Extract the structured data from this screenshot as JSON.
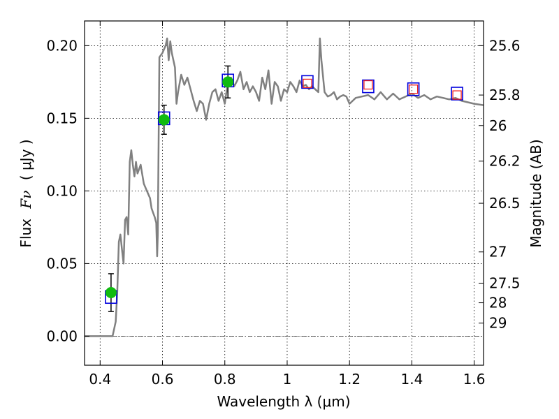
{
  "chart_data": {
    "type": "line",
    "xlabel": "Wavelength  λ (μm)",
    "ylabel_text": "Flux",
    "ylabel_symbol": "Fν",
    "ylabel_unit": "( μJy )",
    "y2label": "Magnitude (AB)",
    "xlim": [
      0.35,
      1.63
    ],
    "ylim": [
      -0.02,
      0.217
    ],
    "xticks": [
      0.4,
      0.6,
      0.8,
      1.0,
      1.2,
      1.4,
      1.6
    ],
    "xtick_labels": [
      "0.4",
      "0.6",
      "0.8",
      "1",
      "1.2",
      "1.4",
      "1.6"
    ],
    "yticks": [
      0.0,
      0.05,
      0.1,
      0.15,
      0.2
    ],
    "ytick_labels": [
      "0.00",
      "0.05",
      "0.10",
      "0.15",
      "0.20"
    ],
    "y2ticks": [
      {
        "flux": 0.2,
        "label": "25.6"
      },
      {
        "flux": 0.166,
        "label": "25.8"
      },
      {
        "flux": 0.145,
        "label": "26"
      },
      {
        "flux": 0.1205,
        "label": "26.2"
      },
      {
        "flux": 0.0915,
        "label": "26.5"
      },
      {
        "flux": 0.058,
        "label": "27"
      },
      {
        "flux": 0.0365,
        "label": "27.5"
      },
      {
        "flux": 0.023,
        "label": "28"
      },
      {
        "flux": 0.009,
        "label": "29"
      }
    ],
    "grid": true,
    "zero_line": true,
    "colors": {
      "sed": "#808080",
      "detections": "#11bb11",
      "model_box": "#0000dd",
      "predicted_box": "#ee2222",
      "errorbar": "#000000"
    },
    "series": [
      {
        "style": "sed-line",
        "x": [
          0.35,
          0.43,
          0.44,
          0.45,
          0.455,
          0.46,
          0.465,
          0.47,
          0.475,
          0.48,
          0.485,
          0.49,
          0.495,
          0.5,
          0.505,
          0.51,
          0.515,
          0.52,
          0.53,
          0.54,
          0.55,
          0.56,
          0.565,
          0.57,
          0.575,
          0.58,
          0.583,
          0.585,
          0.59,
          0.6,
          0.61,
          0.615,
          0.62,
          0.625,
          0.63,
          0.64,
          0.645,
          0.65,
          0.66,
          0.67,
          0.68,
          0.69,
          0.7,
          0.71,
          0.72,
          0.73,
          0.74,
          0.75,
          0.76,
          0.77,
          0.78,
          0.79,
          0.8,
          0.81,
          0.82,
          0.83,
          0.84,
          0.85,
          0.86,
          0.87,
          0.88,
          0.89,
          0.9,
          0.91,
          0.92,
          0.93,
          0.94,
          0.95,
          0.96,
          0.97,
          0.98,
          0.99,
          1.0,
          1.01,
          1.02,
          1.03,
          1.04,
          1.05,
          1.06,
          1.07,
          1.08,
          1.09,
          1.1,
          1.105,
          1.11,
          1.12,
          1.13,
          1.14,
          1.15,
          1.16,
          1.17,
          1.18,
          1.19,
          1.2,
          1.22,
          1.24,
          1.26,
          1.28,
          1.3,
          1.32,
          1.34,
          1.36,
          1.38,
          1.4,
          1.42,
          1.44,
          1.46,
          1.48,
          1.5,
          1.52,
          1.54,
          1.56,
          1.58,
          1.6,
          1.63
        ],
        "y": [
          0.0,
          0.0,
          0.0,
          0.01,
          0.03,
          0.065,
          0.07,
          0.06,
          0.05,
          0.08,
          0.082,
          0.07,
          0.12,
          0.128,
          0.118,
          0.11,
          0.12,
          0.112,
          0.118,
          0.105,
          0.1,
          0.095,
          0.088,
          0.085,
          0.082,
          0.078,
          0.055,
          0.07,
          0.192,
          0.195,
          0.2,
          0.205,
          0.19,
          0.203,
          0.195,
          0.185,
          0.16,
          0.168,
          0.18,
          0.173,
          0.178,
          0.17,
          0.162,
          0.155,
          0.162,
          0.16,
          0.149,
          0.16,
          0.168,
          0.17,
          0.162,
          0.168,
          0.16,
          0.175,
          0.178,
          0.172,
          0.176,
          0.182,
          0.17,
          0.175,
          0.168,
          0.172,
          0.168,
          0.162,
          0.178,
          0.17,
          0.183,
          0.16,
          0.175,
          0.172,
          0.162,
          0.17,
          0.168,
          0.175,
          0.172,
          0.168,
          0.176,
          0.172,
          0.173,
          0.17,
          0.172,
          0.17,
          0.168,
          0.205,
          0.19,
          0.168,
          0.165,
          0.166,
          0.168,
          0.163,
          0.165,
          0.166,
          0.165,
          0.16,
          0.164,
          0.165,
          0.166,
          0.163,
          0.168,
          0.163,
          0.167,
          0.163,
          0.165,
          0.167,
          0.164,
          0.166,
          0.163,
          0.165,
          0.164,
          0.163,
          0.164,
          0.162,
          0.161,
          0.16,
          0.159
        ]
      },
      {
        "style": "detections",
        "x": [
          0.435,
          0.605,
          0.81
        ],
        "y": [
          0.03,
          0.149,
          0.175
        ],
        "yerr": [
          0.013,
          0.01,
          0.011
        ]
      },
      {
        "style": "model-boxes",
        "x": [
          0.435,
          0.605,
          0.81,
          1.065,
          1.26,
          1.405,
          1.545
        ],
        "y": [
          0.027,
          0.15,
          0.176,
          0.175,
          0.172,
          0.17,
          0.167
        ]
      },
      {
        "style": "predicted-boxes",
        "x": [
          1.065,
          1.26,
          1.405,
          1.545
        ],
        "y": [
          0.174,
          0.173,
          0.17,
          0.166
        ]
      }
    ]
  }
}
